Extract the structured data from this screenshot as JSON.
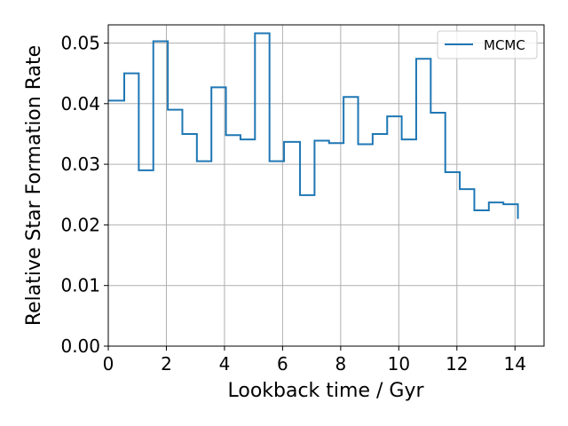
{
  "chart_data": {
    "type": "line",
    "drawstyle": "steps",
    "xlabel": "Lookback time / Gyr",
    "ylabel": "Relative Star Formation Rate",
    "xlim": [
      0,
      15
    ],
    "ylim": [
      0,
      0.053
    ],
    "xticks": [
      0,
      2,
      4,
      6,
      8,
      10,
      12,
      14
    ],
    "xtick_labels": [
      "0",
      "2",
      "4",
      "6",
      "8",
      "10",
      "12",
      "14"
    ],
    "yticks": [
      0,
      0.01,
      0.02,
      0.03,
      0.04,
      0.05
    ],
    "ytick_labels": [
      "0.00",
      "0.01",
      "0.02",
      "0.03",
      "0.04",
      "0.05"
    ],
    "grid": true,
    "legend_position": "top-right",
    "series": [
      {
        "name": "MCMC",
        "color": "#1f77b4",
        "bin_edges": [
          0,
          0.55,
          1.05,
          1.55,
          2.05,
          2.55,
          3.05,
          3.55,
          4.05,
          4.55,
          5.05,
          5.55,
          6.05,
          6.6,
          7.1,
          7.6,
          8.1,
          8.6,
          9.1,
          9.6,
          10.1,
          10.6,
          11.1,
          11.6,
          12.1,
          12.6,
          13.1,
          13.6,
          14.1
        ],
        "values": [
          0.0405,
          0.045,
          0.029,
          0.0503,
          0.039,
          0.035,
          0.0305,
          0.0427,
          0.0348,
          0.0341,
          0.0516,
          0.0305,
          0.0337,
          0.0249,
          0.0339,
          0.0335,
          0.0411,
          0.0333,
          0.035,
          0.0379,
          0.0341,
          0.0474,
          0.0385,
          0.0287,
          0.0259,
          0.0224,
          0.0237,
          0.0234
        ],
        "final_value": 0.021
      }
    ]
  }
}
